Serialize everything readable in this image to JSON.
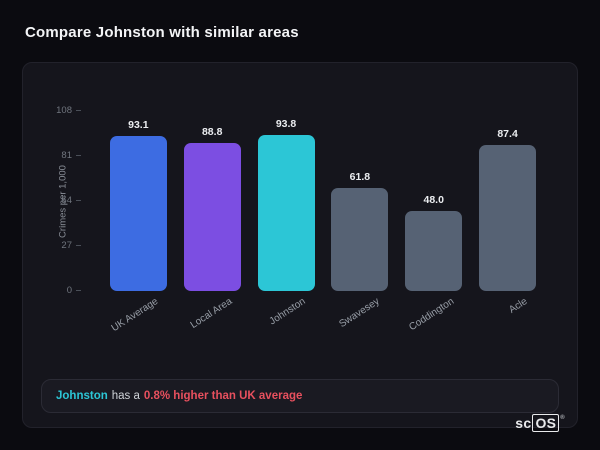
{
  "page": {
    "title": "Compare Johnston with similar areas"
  },
  "chart_data": {
    "type": "bar",
    "title": "",
    "xlabel": "",
    "ylabel": "Crimes per 1,000",
    "ylim": [
      0,
      108
    ],
    "yticks": [
      0,
      27,
      54,
      81,
      108
    ],
    "grid": false,
    "legend": false,
    "categories": [
      "UK Average",
      "Local Area",
      "Johnston",
      "Swavesey",
      "Coddington",
      "Acle"
    ],
    "values": [
      93.1,
      88.8,
      93.8,
      61.8,
      48.0,
      87.4
    ],
    "value_labels": [
      "93.1",
      "88.8",
      "93.8",
      "61.8",
      "48.0",
      "87.4"
    ],
    "bar_colors": [
      "#3d6ce2",
      "#7c4ee2",
      "#2cc6d6",
      "#566274",
      "#566274",
      "#566274"
    ]
  },
  "note": {
    "area": "Johnston",
    "middle": "has a",
    "highlight": "0.8% higher than UK average",
    "area_color": "#2cc6d6",
    "highlight_color": "#e8505e"
  },
  "logo": {
    "prefix": "sc",
    "boxed": "OS",
    "registered": "®"
  },
  "colors": {
    "page_background": "#0b0b10",
    "card_background": "#15151c",
    "note_background": "#1a1a22",
    "axis_text": "#8a8f98",
    "value_text": "#eceef1"
  }
}
